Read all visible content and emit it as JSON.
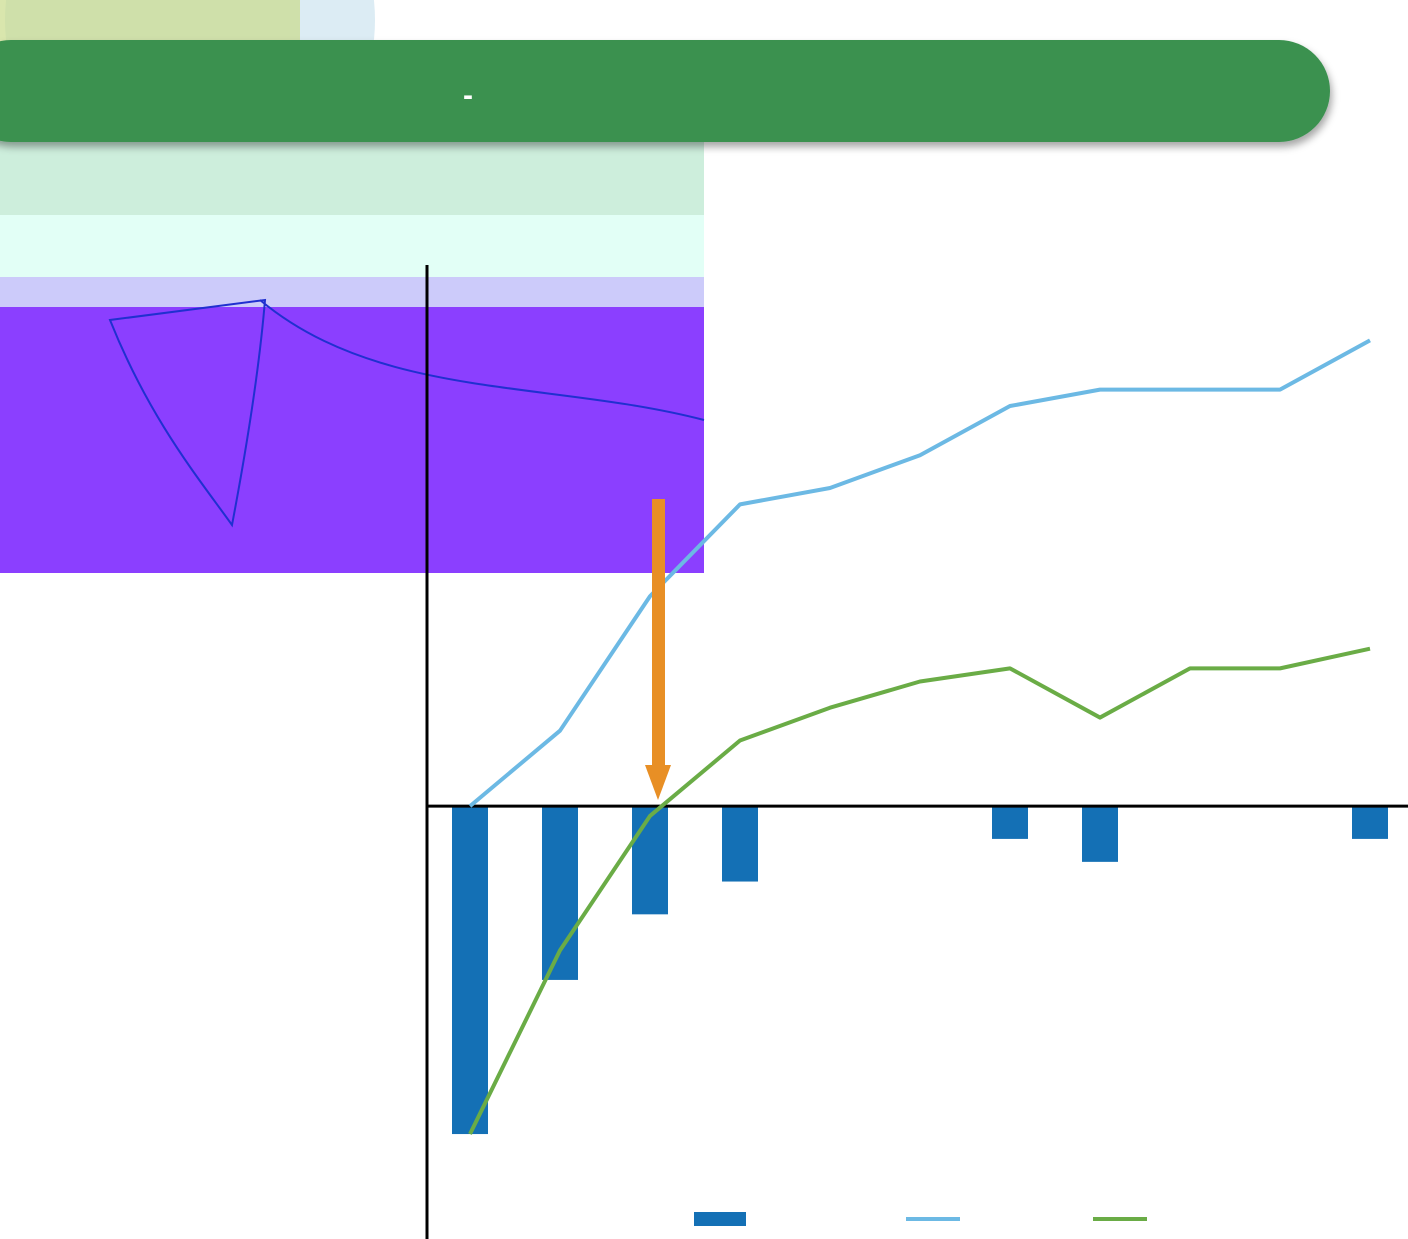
{
  "chart_data": {
    "type": "bar_line",
    "title": "-",
    "categories": [
      null,
      null,
      null,
      null,
      null,
      null,
      null,
      null,
      null,
      null,
      null
    ],
    "series": [
      {
        "type": "bar",
        "color": "#1470b5",
        "values": [
          -100,
          -53,
          -33,
          -23,
          0,
          0,
          -10,
          -17,
          0,
          0,
          -10
        ]
      },
      {
        "type": "line",
        "color": "#6cb9e4",
        "values": [
          0,
          23,
          64,
          92,
          97,
          107,
          122,
          127,
          127,
          127,
          142
        ]
      },
      {
        "type": "line",
        "color": "#6aac46",
        "values": [
          -100,
          -44,
          -3,
          20,
          30,
          38,
          42,
          27,
          42,
          42,
          48
        ]
      }
    ],
    "ylim": [
      -132,
      165
    ]
  }
}
